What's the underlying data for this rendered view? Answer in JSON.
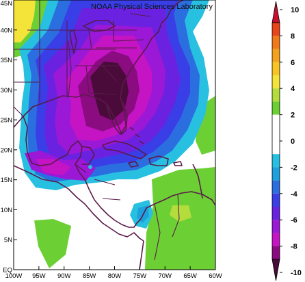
{
  "map": {
    "title": "NOAA Physical Sciences Laboratory",
    "lon_range": [
      -100,
      -60
    ],
    "lat_range": [
      0,
      45
    ],
    "lon_ticks": [
      "100W",
      "95W",
      "90W",
      "85W",
      "80W",
      "75W",
      "70W",
      "65W",
      "60W"
    ],
    "lat_ticks": [
      "EQ",
      "5N",
      "10N",
      "15N",
      "20N",
      "25N",
      "30N",
      "35N",
      "40N",
      "45N"
    ],
    "coastline_color": "#5a1a4a"
  },
  "colorbar": {
    "min": -10,
    "max": 10,
    "labels": [
      "10",
      "8",
      "6",
      "4",
      "2",
      "0",
      "-2",
      "-4",
      "-6",
      "-8",
      "-10"
    ],
    "arrow_top_color": "#c8102e",
    "arrow_bottom_color": "#4a0a3a",
    "levels": [
      {
        "from": 9,
        "to": 10,
        "color": "#d7191c"
      },
      {
        "from": 8,
        "to": 9,
        "color": "#e8451a"
      },
      {
        "from": 7,
        "to": 8,
        "color": "#f07a1a"
      },
      {
        "from": 6,
        "to": 7,
        "color": "#f4a21e"
      },
      {
        "from": 5,
        "to": 6,
        "color": "#f8c424"
      },
      {
        "from": 4,
        "to": 5,
        "color": "#f4e43a"
      },
      {
        "from": 3,
        "to": 4,
        "color": "#b4dc3c"
      },
      {
        "from": 2,
        "to": 3,
        "color": "#6cd034"
      },
      {
        "from": 1,
        "to": 2,
        "color": "#ffffff"
      },
      {
        "from": -1,
        "to": 1,
        "color": "#ffffff"
      },
      {
        "from": -2,
        "to": -1,
        "color": "#28c0e0"
      },
      {
        "from": -3,
        "to": -2,
        "color": "#1ea0dc"
      },
      {
        "from": -4,
        "to": -3,
        "color": "#2a6ee0"
      },
      {
        "from": -5,
        "to": -4,
        "color": "#3a3ee6"
      },
      {
        "from": -6,
        "to": -5,
        "color": "#6a22e0"
      },
      {
        "from": -7,
        "to": -6,
        "color": "#9a18d6"
      },
      {
        "from": -8,
        "to": -7,
        "color": "#c414c4"
      },
      {
        "from": -9,
        "to": -8,
        "color": "#8a0c80"
      },
      {
        "from": -10,
        "to": -9,
        "color": "#4a0a3a"
      }
    ]
  }
}
